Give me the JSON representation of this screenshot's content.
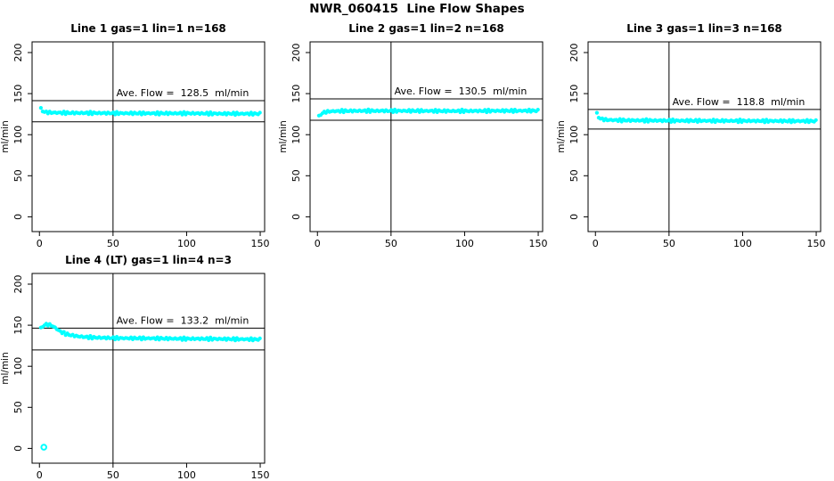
{
  "figure": {
    "title": "NWR_060415  Line Flow Shapes"
  },
  "chart_data": [
    {
      "type": "scatter",
      "title": "Line 1 gas=1 lin=1 n=168",
      "annotation": "Ave. Flow =  128.5  ml/min",
      "ave_flow_ml_min": 128.5,
      "ref_line_upper": 141.4,
      "ref_line_lower": 115.7,
      "vline_x": 50,
      "xlim": [
        -5,
        153
      ],
      "ylim": [
        -18,
        213
      ],
      "xticks": [
        0,
        50,
        100,
        150
      ],
      "yticks": [
        0,
        50,
        100,
        150,
        200
      ],
      "xlabel": "",
      "ylabel": "ml/min",
      "marker_color": "#00ffff",
      "series_keypoints": [
        [
          1,
          131.5
        ],
        [
          2,
          129.0
        ],
        [
          3,
          128.0
        ],
        [
          5,
          127.2
        ],
        [
          10,
          126.8
        ],
        [
          20,
          126.5
        ],
        [
          40,
          126.3
        ],
        [
          70,
          126.0
        ],
        [
          100,
          126.0
        ],
        [
          125,
          125.6
        ],
        [
          150,
          125.5
        ]
      ],
      "outliers": []
    },
    {
      "type": "scatter",
      "title": "Line 2 gas=1 lin=2 n=168",
      "annotation": "Ave. Flow =  130.5  ml/min",
      "ave_flow_ml_min": 130.5,
      "ref_line_upper": 143.6,
      "ref_line_lower": 117.5,
      "vline_x": 50,
      "xlim": [
        -5,
        153
      ],
      "ylim": [
        -18,
        213
      ],
      "xticks": [
        0,
        50,
        100,
        150
      ],
      "yticks": [
        0,
        50,
        100,
        150,
        200
      ],
      "xlabel": "",
      "ylabel": "ml/min",
      "marker_color": "#00ffff",
      "series_keypoints": [
        [
          1,
          122.0
        ],
        [
          2,
          124.0
        ],
        [
          3,
          126.0
        ],
        [
          5,
          127.5
        ],
        [
          8,
          128.3
        ],
        [
          15,
          128.8
        ],
        [
          30,
          129.0
        ],
        [
          60,
          129.0
        ],
        [
          90,
          128.8
        ],
        [
          120,
          129.0
        ],
        [
          150,
          129.2
        ]
      ],
      "outliers": []
    },
    {
      "type": "scatter",
      "title": "Line 3 gas=1 lin=3 n=168",
      "annotation": "Ave. Flow =  118.8  ml/min",
      "ave_flow_ml_min": 118.8,
      "ref_line_upper": 130.7,
      "ref_line_lower": 106.9,
      "vline_x": 50,
      "xlim": [
        -5,
        153
      ],
      "ylim": [
        -18,
        213
      ],
      "xticks": [
        0,
        50,
        100,
        150
      ],
      "yticks": [
        0,
        50,
        100,
        150,
        200
      ],
      "xlabel": "",
      "ylabel": "ml/min",
      "marker_color": "#00ffff",
      "series_keypoints": [
        [
          1,
          125.5
        ],
        [
          2,
          121.5
        ],
        [
          4,
          119.0
        ],
        [
          8,
          118.0
        ],
        [
          15,
          117.6
        ],
        [
          30,
          117.3
        ],
        [
          60,
          117.0
        ],
        [
          100,
          116.8
        ],
        [
          150,
          116.5
        ]
      ],
      "outliers": []
    },
    {
      "type": "scatter",
      "title": "Line 4 (LT) gas=1 lin=4 n=3",
      "annotation": "Ave. Flow =  133.2  ml/min",
      "ave_flow_ml_min": 133.2,
      "ref_line_upper": 146.5,
      "ref_line_lower": 119.9,
      "vline_x": 50,
      "xlim": [
        -5,
        153
      ],
      "ylim": [
        -18,
        213
      ],
      "xticks": [
        0,
        50,
        100,
        150
      ],
      "yticks": [
        0,
        50,
        100,
        150,
        200
      ],
      "xlabel": "",
      "ylabel": "ml/min",
      "marker_color": "#00ffff",
      "series_keypoints": [
        [
          1,
          146.0
        ],
        [
          3,
          150.0
        ],
        [
          5,
          151.0
        ],
        [
          8,
          150.0
        ],
        [
          11,
          146.5
        ],
        [
          14,
          142.5
        ],
        [
          17,
          140.0
        ],
        [
          21,
          138.0
        ],
        [
          26,
          136.5
        ],
        [
          32,
          135.5
        ],
        [
          40,
          134.8
        ],
        [
          55,
          134.2
        ],
        [
          75,
          134.0
        ],
        [
          95,
          133.6
        ],
        [
          115,
          133.4
        ],
        [
          135,
          133.0
        ],
        [
          150,
          132.7
        ]
      ],
      "outliers": [
        [
          3,
          1.5
        ]
      ]
    }
  ]
}
